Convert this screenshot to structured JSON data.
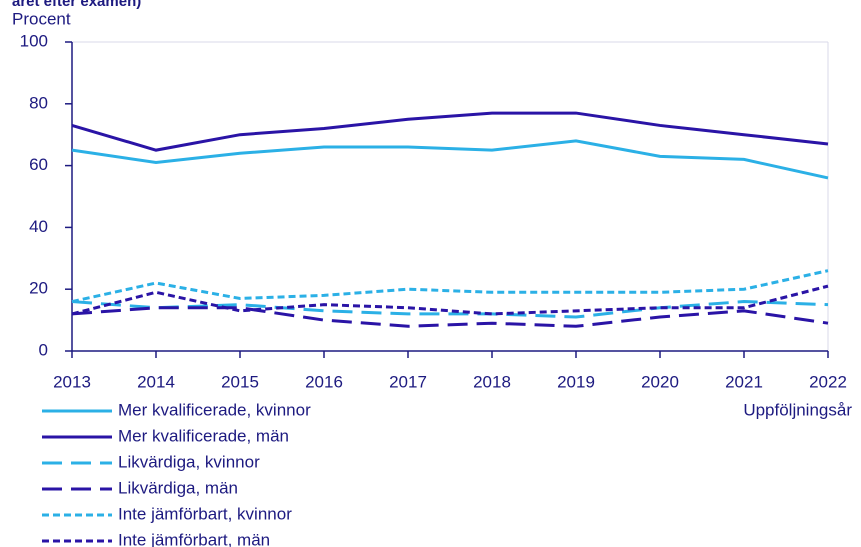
{
  "chart_data": {
    "type": "line",
    "subtitle": "året efter examen)",
    "ylabel": "Procent",
    "xlabel": "Uppföljningsår",
    "x": [
      2013,
      2014,
      2015,
      2016,
      2017,
      2018,
      2019,
      2020,
      2021,
      2022
    ],
    "xlim": [
      2013,
      2022
    ],
    "xticks": [
      2013,
      2014,
      2015,
      2016,
      2017,
      2018,
      2019,
      2020,
      2021,
      2022
    ],
    "ylim": [
      0,
      100
    ],
    "yticks": [
      0,
      20,
      40,
      60,
      80,
      100
    ],
    "grid": false,
    "legend": "bottom-left",
    "series": [
      {
        "name": "Mer kvalificerade, kvinnor",
        "color": "#2bb0e6",
        "dash": "solid",
        "values": [
          65,
          61,
          64,
          66,
          66,
          65,
          68,
          63,
          62,
          56
        ]
      },
      {
        "name": "Mer kvalificerade, män",
        "color": "#2a14a6",
        "dash": "solid",
        "values": [
          73,
          65,
          70,
          72,
          75,
          77,
          77,
          73,
          70,
          67
        ]
      },
      {
        "name": "Likvärdiga, kvinnor",
        "color": "#2bb0e6",
        "dash": "long",
        "values": [
          16,
          14,
          15,
          13,
          12,
          12,
          11,
          14,
          16,
          15
        ]
      },
      {
        "name": "Likvärdiga, män",
        "color": "#2a14a6",
        "dash": "long",
        "values": [
          12,
          14,
          14,
          10,
          8,
          9,
          8,
          11,
          13,
          9
        ]
      },
      {
        "name": "Inte jämförbart, kvinnor",
        "color": "#2bb0e6",
        "dash": "short",
        "values": [
          16,
          22,
          17,
          18,
          20,
          19,
          19,
          19,
          20,
          26
        ]
      },
      {
        "name": "Inte jämförbart, män",
        "color": "#2a14a6",
        "dash": "short",
        "values": [
          12,
          19,
          13,
          15,
          14,
          12,
          13,
          14,
          14,
          21
        ]
      }
    ]
  }
}
